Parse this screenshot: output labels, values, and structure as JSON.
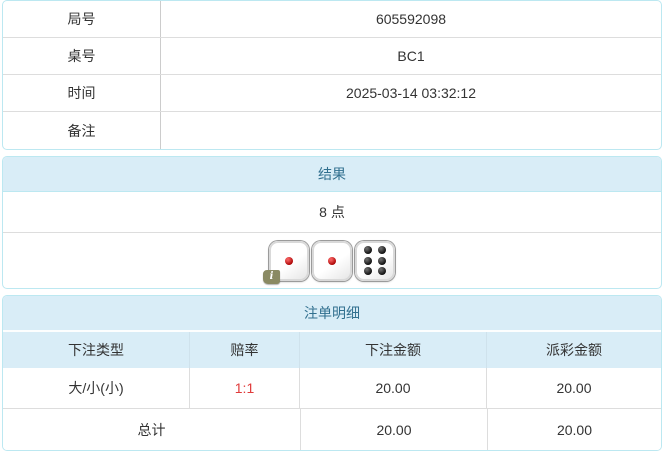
{
  "colors": {
    "panel_border": "#bce8f1",
    "section_header_bg": "#d9edf7",
    "section_header_text": "#31708f",
    "row_divider": "#dddddd",
    "odds_red": "#e03b3b",
    "badge_olive": "#8a8a63"
  },
  "info_table": {
    "rows": [
      {
        "label": "局号",
        "value": "605592098"
      },
      {
        "label": "桌号",
        "value": "BC1"
      },
      {
        "label": "时间",
        "value": "2025-03-14 03:32:12"
      },
      {
        "label": "备注",
        "value": ""
      }
    ]
  },
  "result_panel": {
    "title": "结果",
    "points": "8 点",
    "dice": [
      1,
      1,
      6
    ],
    "info_badge": "i"
  },
  "bets_panel": {
    "title": "注单明细",
    "columns": [
      "下注类型",
      "赔率",
      "下注金额",
      "派彩金额"
    ],
    "rows": [
      {
        "bet_type": "大/小(小)",
        "odds": "1:1",
        "bet_amount": "20.00",
        "payout": "20.00"
      }
    ],
    "total": {
      "label": "总计",
      "bet_amount": "20.00",
      "payout": "20.00"
    }
  }
}
